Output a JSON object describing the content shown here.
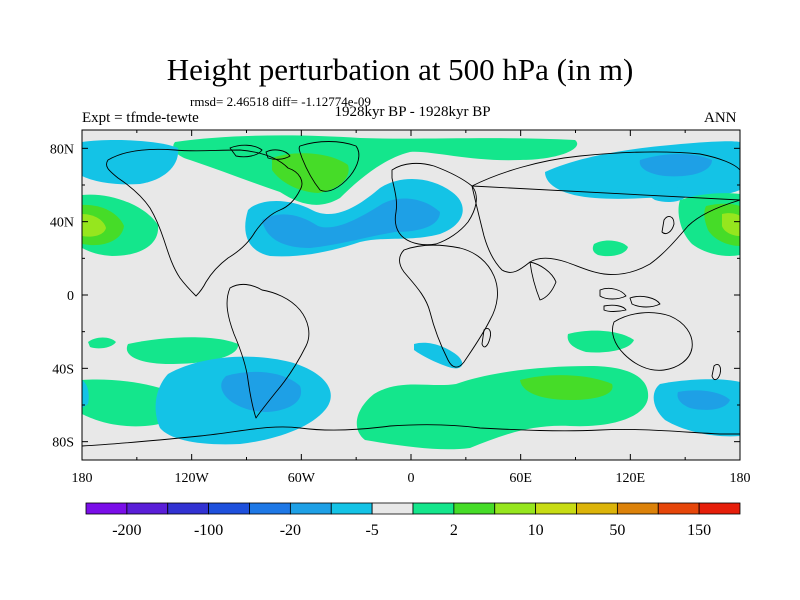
{
  "title": "Height perturbation at 500 hPa (in m)",
  "stats": "rmsd= 2.46518 diff= -1.12774e-09",
  "experiment": "Expt = tfmde-tewte",
  "period": "1928kyr BP - 1928kyr BP",
  "season": "ANN",
  "map": {
    "lon_range": [
      -180,
      180
    ],
    "lat_range": [
      -90,
      90
    ],
    "lat_ticks": [
      {
        "value": 80,
        "label": "80N"
      },
      {
        "value": 40,
        "label": "40N"
      },
      {
        "value": 0,
        "label": "0"
      },
      {
        "value": -40,
        "label": "40S"
      },
      {
        "value": -80,
        "label": "80S"
      }
    ],
    "lon_ticks": [
      {
        "value": -180,
        "label": "180"
      },
      {
        "value": -120,
        "label": "120W"
      },
      {
        "value": -60,
        "label": "60W"
      },
      {
        "value": 0,
        "label": "0"
      },
      {
        "value": 60,
        "label": "60E"
      },
      {
        "value": 120,
        "label": "120E"
      },
      {
        "value": 180,
        "label": "180"
      }
    ],
    "background_color": "#e8e8e8"
  },
  "colorbar": {
    "colors": [
      "#7a0ee8",
      "#5a1ed8",
      "#3232d2",
      "#1e50dc",
      "#1e78e6",
      "#1ea0e6",
      "#14c3e6",
      "#e8e8e8",
      "#14e68c",
      "#46dc28",
      "#96e61e",
      "#c8dc14",
      "#dcb40a",
      "#dc820a",
      "#e6460a",
      "#e61e0a"
    ],
    "labels": [
      {
        "edge": 1,
        "text": "-200"
      },
      {
        "edge": 3,
        "text": "-100"
      },
      {
        "edge": 5,
        "text": "-20"
      },
      {
        "edge": 7,
        "text": "-5"
      },
      {
        "edge": 9,
        "text": "2"
      },
      {
        "edge": 11,
        "text": "10"
      },
      {
        "edge": 13,
        "text": "50"
      },
      {
        "edge": 15,
        "text": "150"
      }
    ]
  }
}
